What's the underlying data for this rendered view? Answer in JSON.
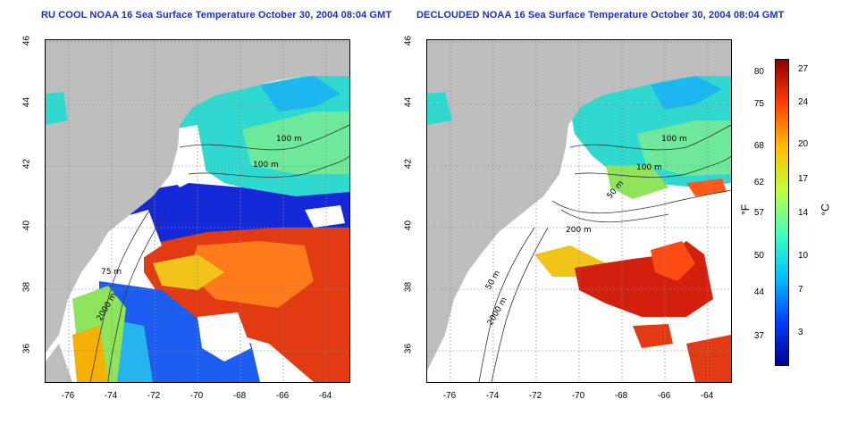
{
  "titles": {
    "left": "RU COOL NOAA 16 Sea Surface Temperature October 30, 2004 08:04 GMT",
    "right": "DECLOUDED NOAA 16 Sea Surface Temperature October 30, 2004 08:04 GMT"
  },
  "axes": {
    "lat_ticks": [
      "46",
      "44",
      "42",
      "40",
      "38",
      "36"
    ],
    "lon_ticks": [
      "-76",
      "-74",
      "-72",
      "-70",
      "-68",
      "-66",
      "-64"
    ]
  },
  "contour_labels": {
    "left": [
      "100 m",
      "100 m",
      "75 m",
      "2000 m"
    ],
    "right": [
      "100 m",
      "100 m",
      "50 m",
      "200 m",
      "50 m",
      "2000 m"
    ]
  },
  "colorbar": {
    "fahrenheit_unit": "°F",
    "celsius_unit": "°C",
    "fahrenheit_ticks": [
      "80",
      "75",
      "68",
      "62",
      "57",
      "50",
      "44",
      "37"
    ],
    "celsius_ticks": [
      "27",
      "24",
      "20",
      "17",
      "14",
      "10",
      "7",
      "3"
    ],
    "colors": [
      "#00008f",
      "#0040ff",
      "#00bfff",
      "#40ffbf",
      "#bfff40",
      "#ffbf00",
      "#ff4000",
      "#8f0000"
    ]
  },
  "map_colors": {
    "land": "#bebebe",
    "cloud": "#ffffff",
    "grid": "#8c8c8c"
  }
}
